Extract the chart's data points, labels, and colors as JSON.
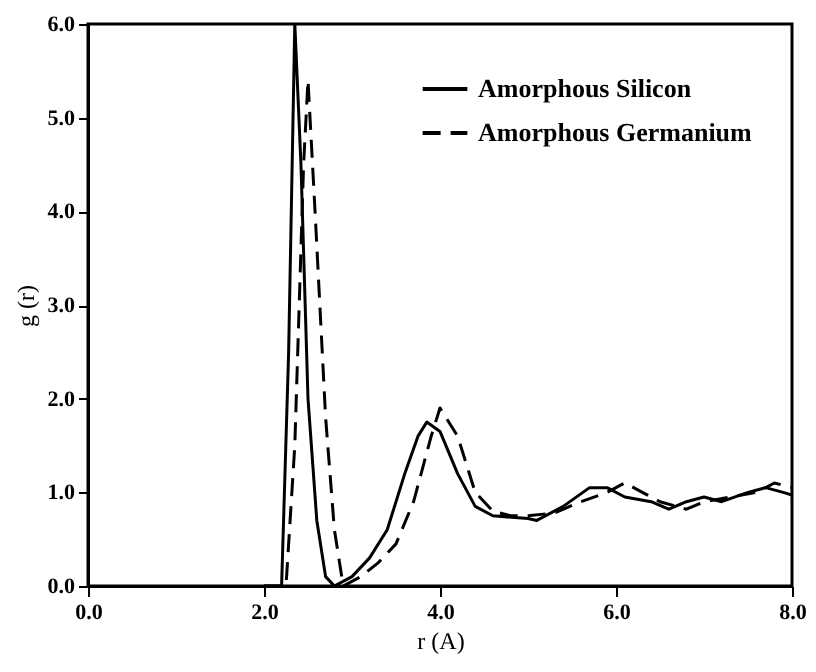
{
  "chart_data": {
    "type": "line",
    "xlabel": "r (A)",
    "ylabel": "g (r)",
    "xlim": [
      0,
      8
    ],
    "ylim": [
      0,
      6
    ],
    "xticks": [
      {
        "value": 0,
        "label": "0.0"
      },
      {
        "value": 2,
        "label": "2.0"
      },
      {
        "value": 4,
        "label": "4.0"
      },
      {
        "value": 6,
        "label": "6.0"
      },
      {
        "value": 8,
        "label": "8.0"
      }
    ],
    "yticks": [
      {
        "value": 0,
        "label": "0.0"
      },
      {
        "value": 1,
        "label": "1.0"
      },
      {
        "value": 2,
        "label": "2.0"
      },
      {
        "value": 3,
        "label": "3.0"
      },
      {
        "value": 4,
        "label": "4.0"
      },
      {
        "value": 5,
        "label": "5.0"
      },
      {
        "value": 6,
        "label": "6.0"
      }
    ],
    "legend": "top right",
    "grid": false,
    "series": [
      {
        "name": "Amorphous Silicon",
        "color": "#000000",
        "line_style": "solid",
        "x": [
          2.0,
          2.2,
          2.28,
          2.35,
          2.42,
          2.5,
          2.6,
          2.7,
          2.8,
          3.0,
          3.2,
          3.4,
          3.6,
          3.75,
          3.85,
          4.0,
          4.2,
          4.4,
          4.6,
          5.0,
          5.1,
          5.4,
          5.7,
          5.9,
          6.1,
          6.4,
          6.6,
          6.8,
          7.0,
          7.2,
          7.5,
          7.7,
          7.9,
          8.0
        ],
        "values": [
          0,
          0,
          2.5,
          6.0,
          4.5,
          2.0,
          0.7,
          0.1,
          0,
          0.1,
          0.3,
          0.6,
          1.2,
          1.6,
          1.75,
          1.65,
          1.2,
          0.85,
          0.75,
          0.72,
          0.7,
          0.85,
          1.05,
          1.05,
          0.95,
          0.9,
          0.82,
          0.9,
          0.95,
          0.9,
          1.0,
          1.05,
          1.0,
          0.97
        ]
      },
      {
        "name": "Amorphous Germanium",
        "color": "#000000",
        "line_style": "dashed",
        "x": [
          2.0,
          2.25,
          2.35,
          2.45,
          2.5,
          2.58,
          2.7,
          2.8,
          2.9,
          3.1,
          3.3,
          3.5,
          3.7,
          3.9,
          4.0,
          4.2,
          4.4,
          4.6,
          4.8,
          5.0,
          5.3,
          5.6,
          5.9,
          6.1,
          6.3,
          6.5,
          6.8,
          7.0,
          7.3,
          7.6,
          7.8,
          8.0
        ],
        "values": [
          0,
          0,
          1.5,
          4.5,
          5.4,
          4.0,
          1.8,
          0.6,
          0,
          0.1,
          0.25,
          0.45,
          0.9,
          1.6,
          1.9,
          1.6,
          1.0,
          0.8,
          0.75,
          0.75,
          0.78,
          0.9,
          1.0,
          1.1,
          1.0,
          0.9,
          0.82,
          0.9,
          0.95,
          1.0,
          1.1,
          1.05
        ]
      }
    ]
  }
}
